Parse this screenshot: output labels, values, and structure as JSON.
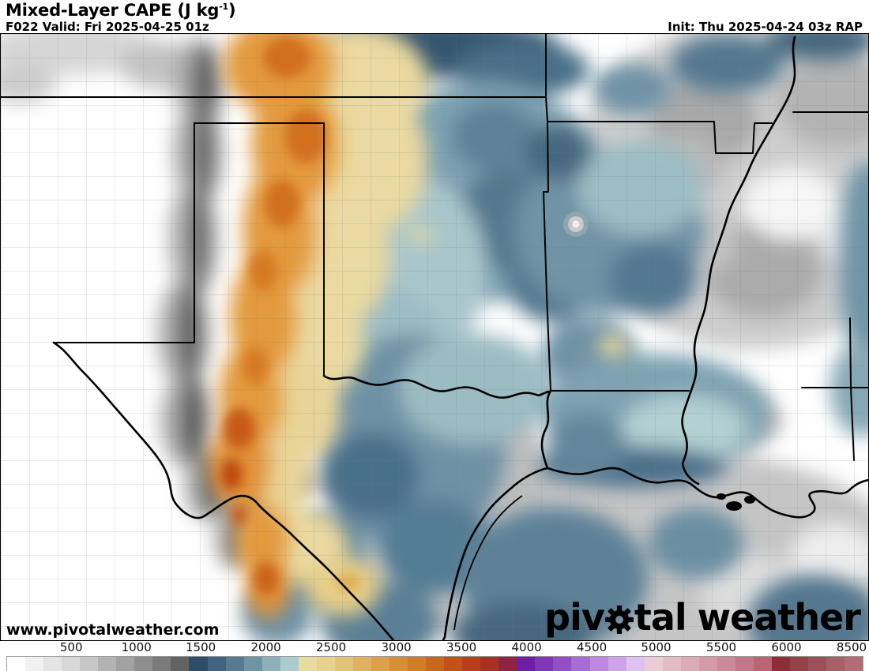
{
  "header": {
    "title_main": "Mixed-Layer CAPE ",
    "title_unit_open": "(J kg",
    "title_unit_sup": "-1",
    "title_unit_close": ")",
    "forecast_info": "F022 Valid: Fri 2025-04-25 01z",
    "init_info": "Init: Thu 2025-04-24 03z RAP"
  },
  "map": {
    "watermark_url": "www.pivotalweather.com",
    "logo_part1": "piv",
    "logo_part2": "tal",
    "logo_part3": "weather"
  },
  "colorbar": {
    "border_color": "#999999",
    "tick_labels": [
      "500",
      "1000",
      "1500",
      "2000",
      "2500",
      "3000",
      "3500",
      "4000",
      "4500",
      "5000",
      "5500",
      "6000",
      "8500"
    ],
    "tick_positions_pct": [
      8.2,
      15.7,
      23.1,
      30.6,
      38.1,
      45.6,
      53.1,
      60.6,
      68.1,
      75.5,
      83.0,
      90.5,
      98.0
    ],
    "swatches": [
      "#ffffff",
      "#f1f1f1",
      "#e5e5e5",
      "#d8d8d8",
      "#c7c7c7",
      "#b3b3b3",
      "#a1a1a1",
      "#8f8f8f",
      "#7b7b7b",
      "#636363",
      "#2e4d68",
      "#41637f",
      "#577b93",
      "#6f94a6",
      "#8db0ba",
      "#abccce",
      "#e9daa0",
      "#e6d28c",
      "#e3c377",
      "#dfb260",
      "#dba14b",
      "#d68f38",
      "#d07c29",
      "#c8671e",
      "#c05317",
      "#b54019",
      "#a63225",
      "#8e2540",
      "#6f1fa6",
      "#8136b8",
      "#944fc6",
      "#a96bd4",
      "#bd87e0",
      "#cfa3ea",
      "#e0c0f2",
      "#e9ccd4",
      "#e2bbc4",
      "#dcabb6",
      "#d49aa6",
      "#cc8997",
      "#c47787",
      "#bb6474",
      "#8c2d3a",
      "#95414a",
      "#9e505a",
      "#a75f68",
      "#b06d75"
    ]
  }
}
